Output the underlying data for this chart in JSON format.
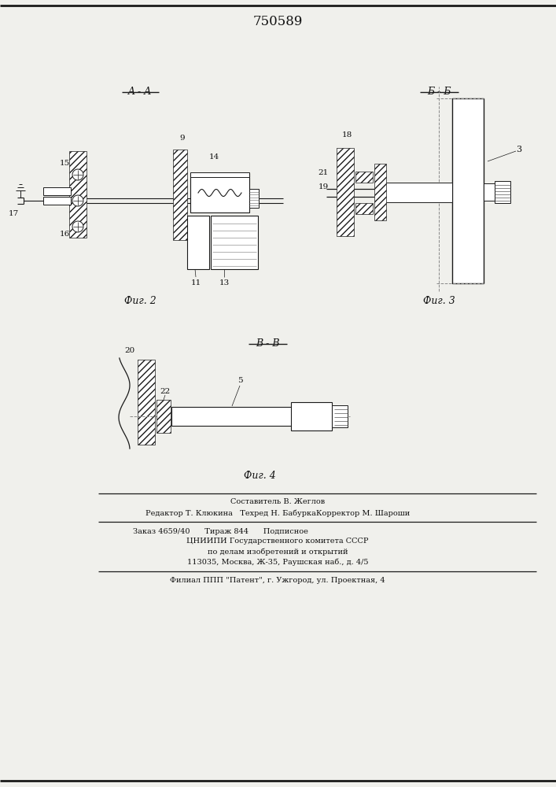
{
  "title": "750589",
  "bg_color": "#f0f0ec",
  "fig_width": 7.07,
  "fig_height": 10.0,
  "footer_lines": [
    "Составитель В. Жеглов",
    "Редактор Т. Клюкина   Техред Н. БабуркаКорректор М. Шароши",
    "Заказ 4659/40      Тираж 844      Подписное",
    "ЦНИИПИ Государственного комитета СССР",
    "по делам изобретений и открытий",
    "113035, Москва, Ж-35, Раушская наб., д. 4/5",
    "Филиал ППП \"Патент\", г. Ужгород, ул. Проектная, 4"
  ],
  "section_label_AA": "A - A",
  "section_label_BB": "Б - Б",
  "section_label_VV": "В - В",
  "fig2_label": "Фиг. 2",
  "fig3_label": "Фиг. 3",
  "fig4_label": "Фиг. 4",
  "line_color": "#1a1a1a",
  "text_color": "#111111"
}
